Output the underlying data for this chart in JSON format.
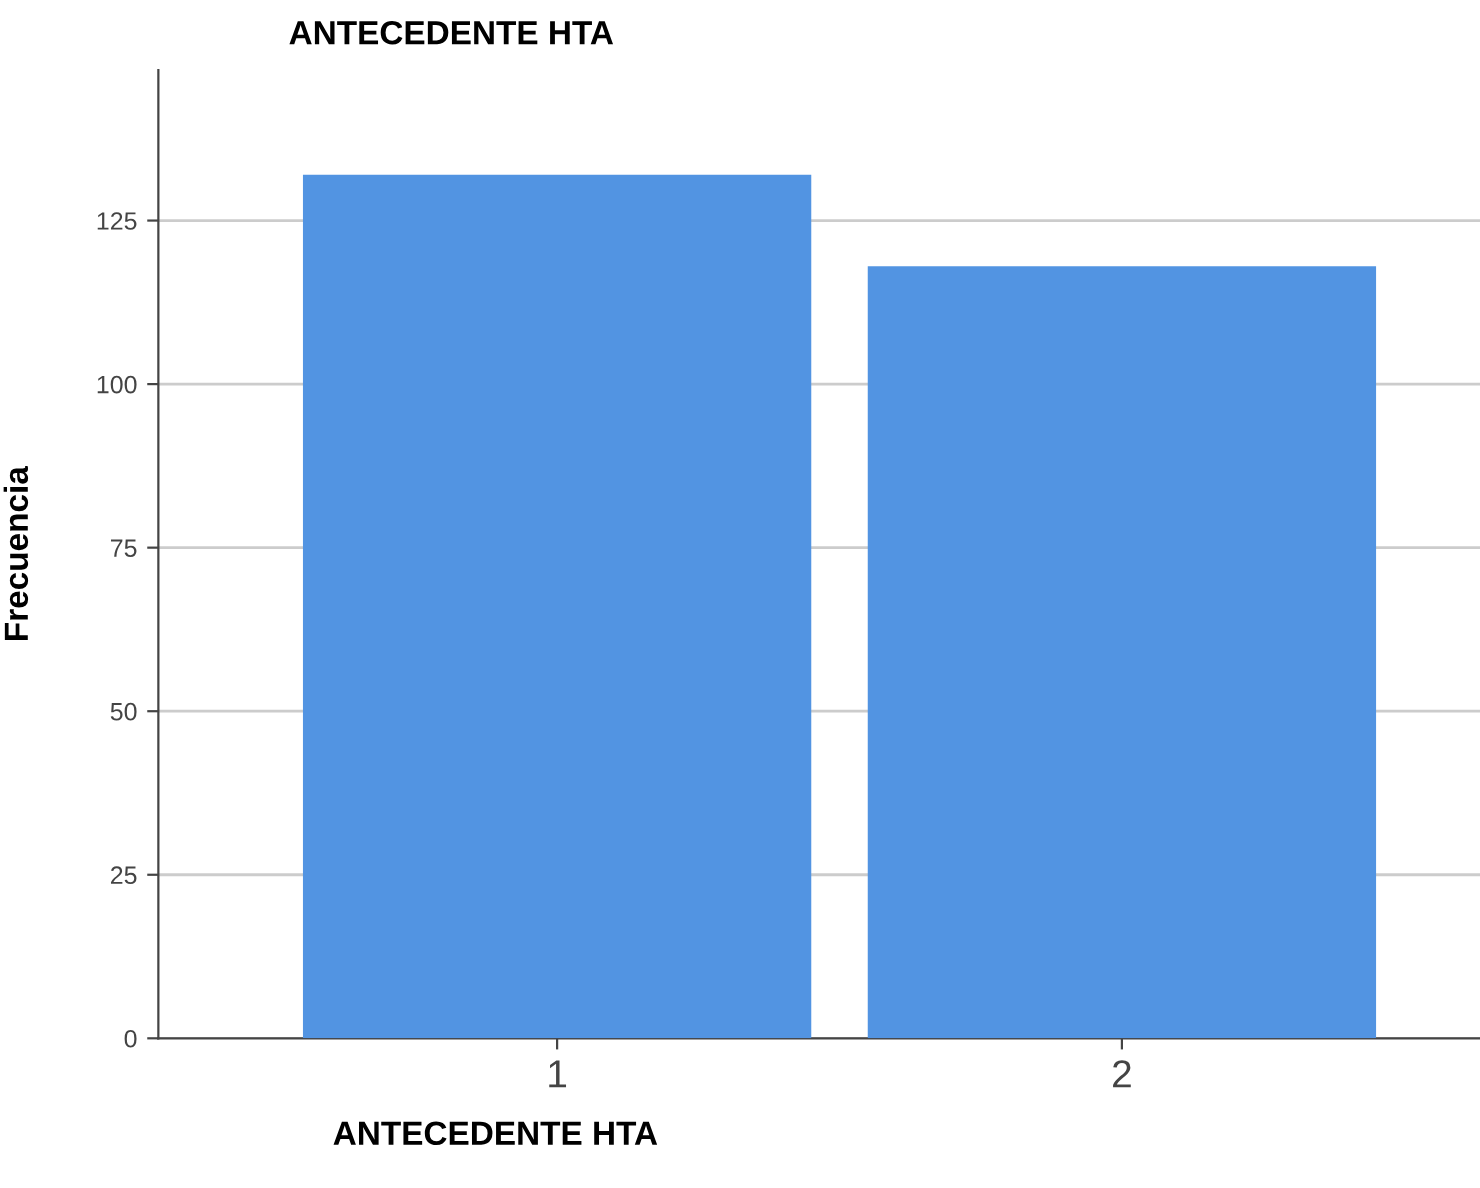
{
  "chart_data": {
    "type": "bar",
    "title": "ANTECEDENTE HTA",
    "xlabel": "ANTECEDENTE HTA",
    "ylabel": "Frecuencia",
    "categories": [
      "1",
      "2"
    ],
    "values": [
      132,
      118
    ],
    "color": "#5294e2",
    "ylim": [
      0,
      148
    ],
    "yticks": [
      0,
      25,
      50,
      75,
      100,
      125
    ],
    "grid": "y"
  }
}
